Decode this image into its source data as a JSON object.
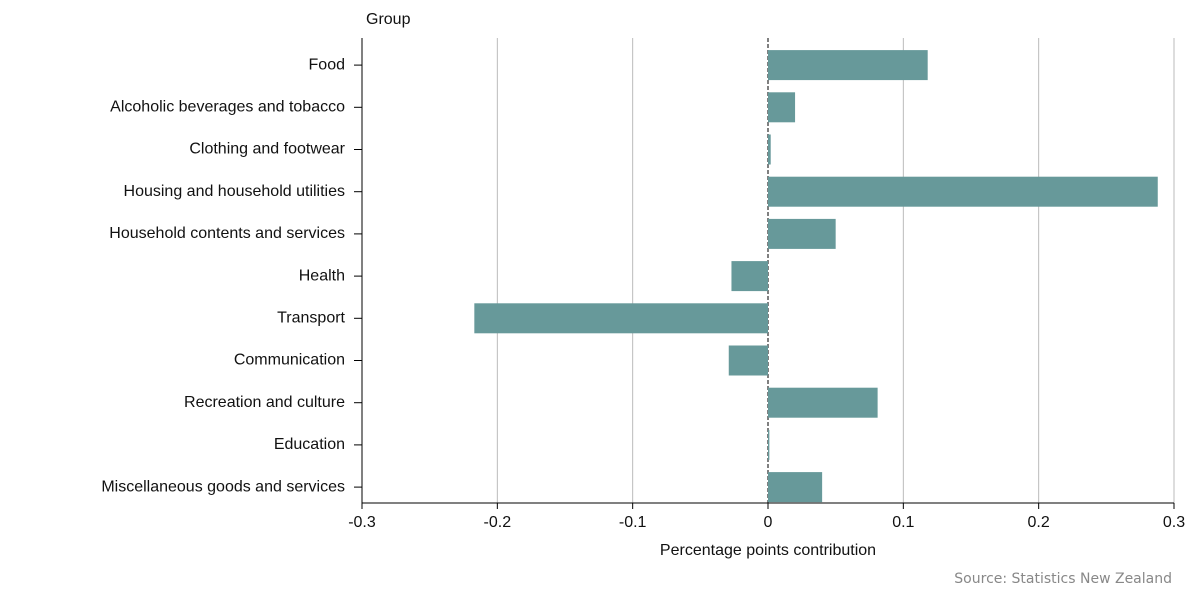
{
  "chart_data": {
    "type": "hbar",
    "y_label": "Group",
    "x_label": "Percentage points contribution",
    "source": "Source: Statistics New Zealand",
    "categories": [
      "Food",
      "Alcoholic beverages and tobacco",
      "Clothing and footwear",
      "Housing and household utilities",
      "Household contents and services",
      "Health",
      "Transport",
      "Communication",
      "Recreation and culture",
      "Education",
      "Miscellaneous goods and services"
    ],
    "values": [
      0.118,
      0.02,
      0.002,
      0.288,
      0.05,
      -0.027,
      -0.217,
      -0.029,
      0.081,
      0.001,
      0.04
    ],
    "color": "#67999a",
    "xlim": [
      -0.3,
      0.3
    ],
    "xticks": [
      -0.3,
      -0.2,
      -0.1,
      0,
      0.1,
      0.2,
      0.3
    ],
    "grid": true
  }
}
